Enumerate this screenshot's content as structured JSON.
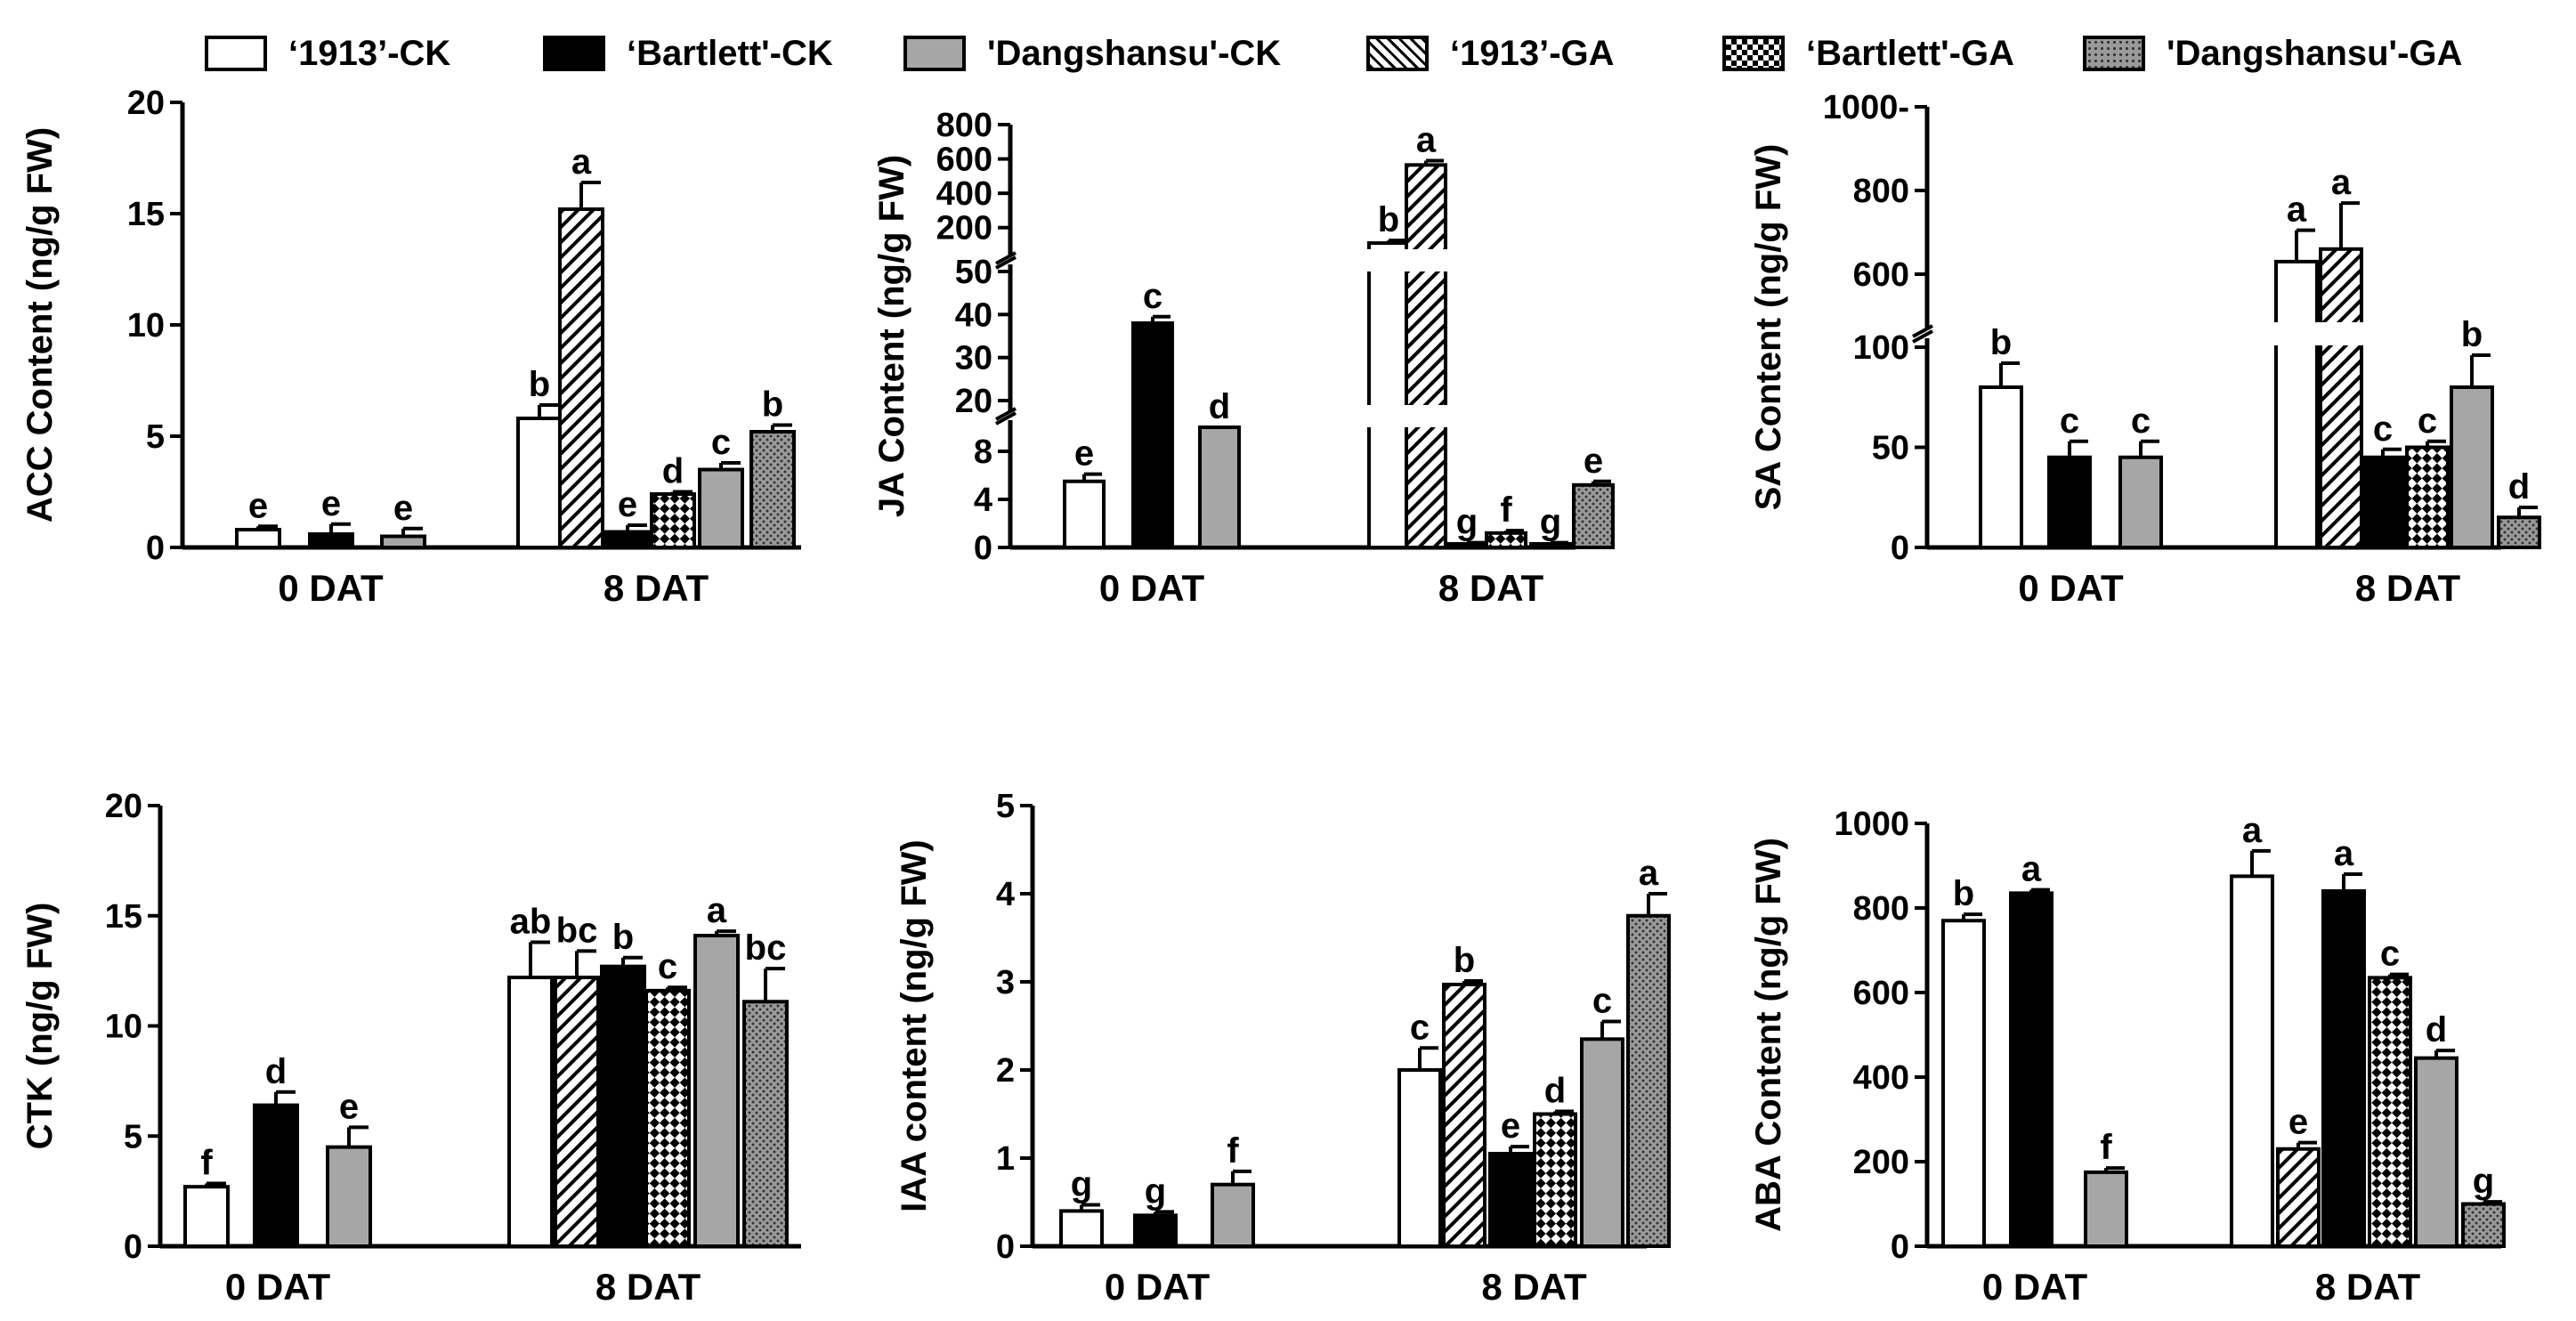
{
  "legend": [
    {
      "label": "‘1913’-CK",
      "pattern": "white"
    },
    {
      "label": "‘Bartlett'-CK",
      "pattern": "black"
    },
    {
      "label": "'Dangshansu'-CK",
      "pattern": "gray"
    },
    {
      "label": "‘1913’-GA",
      "pattern": "hatch"
    },
    {
      "label": "‘Bartlett'-GA",
      "pattern": "checker"
    },
    {
      "label": "'Dangshansu'-GA",
      "pattern": "dots"
    }
  ],
  "colors": {
    "black": "#000000",
    "gray": "#a6a6a6",
    "white": "#ffffff",
    "dotgray": "#9a9a9a"
  },
  "chart_data": [
    {
      "type": "bar",
      "ylabel": "ACC Content (ng/g FW)",
      "categories": [
        "0 DAT",
        "8 DAT"
      ],
      "ylim": [
        0,
        20
      ],
      "yticks": [
        "0",
        "5",
        "10",
        "15",
        "20"
      ],
      "series": [
        {
          "name": "‘1913’-CK",
          "values": [
            0.8,
            5.8
          ],
          "errors": [
            0.15,
            0.6
          ],
          "letters": [
            "e",
            "b"
          ]
        },
        {
          "name": "‘1913’-GA",
          "values": [
            null,
            15.2
          ],
          "errors": [
            null,
            1.2
          ],
          "letters": [
            null,
            "a"
          ]
        },
        {
          "name": "‘Bartlett'-CK",
          "values": [
            0.6,
            0.7
          ],
          "errors": [
            0.45,
            0.3
          ],
          "letters": [
            "e",
            "e"
          ]
        },
        {
          "name": "‘Bartlett'-GA",
          "values": [
            null,
            2.4
          ],
          "errors": [
            null,
            0.1
          ],
          "letters": [
            null,
            "d"
          ]
        },
        {
          "name": "'Dangshansu'-CK",
          "values": [
            0.5,
            3.5
          ],
          "errors": [
            0.35,
            0.3
          ],
          "letters": [
            "e",
            "c"
          ]
        },
        {
          "name": "'Dangshansu'-GA",
          "values": [
            null,
            5.2
          ],
          "errors": [
            null,
            0.3
          ],
          "letters": [
            null,
            "b"
          ]
        }
      ]
    },
    {
      "type": "bar",
      "ylabel": "JA Content (ng/g FW)",
      "categories": [
        "0 DAT",
        "8 DAT"
      ],
      "ylim": [
        0,
        800
      ],
      "yticks": [
        "0",
        "4",
        "8",
        "20",
        "30",
        "40",
        "50",
        "200",
        "400",
        "600",
        "800"
      ],
      "series": [
        {
          "name": "‘1913’-CK",
          "values": [
            5.5,
            110
          ],
          "errors": [
            0.6,
            15
          ],
          "letters": [
            "e",
            "b"
          ]
        },
        {
          "name": "‘1913’-GA",
          "values": [
            null,
            565
          ],
          "errors": [
            null,
            25
          ],
          "letters": [
            null,
            "a"
          ]
        },
        {
          "name": "‘Bartlett'-CK",
          "values": [
            38,
            0.3
          ],
          "errors": [
            1.5,
            0.1
          ],
          "letters": [
            "c",
            "g"
          ]
        },
        {
          "name": "‘Bartlett'-GA",
          "values": [
            null,
            1.2
          ],
          "errors": [
            null,
            0.2
          ],
          "letters": [
            null,
            "f"
          ]
        },
        {
          "name": "'Dangshansu'-CK",
          "values": [
            10,
            0.3
          ],
          "errors": [
            0.4,
            0.1
          ],
          "letters": [
            "d",
            "g"
          ]
        },
        {
          "name": "'Dangshansu'-GA",
          "values": [
            null,
            5.2
          ],
          "errors": [
            null,
            0.3
          ],
          "letters": [
            null,
            "e"
          ]
        }
      ]
    },
    {
      "type": "bar",
      "ylabel": "SA Content (ng/g FW)",
      "categories": [
        "0 DAT",
        "8 DAT"
      ],
      "ylim": [
        0,
        1000
      ],
      "yticks": [
        "0",
        "50",
        "100",
        "600",
        "800",
        "1000-"
      ],
      "series": [
        {
          "name": "‘1913’-CK",
          "values": [
            80,
            630
          ],
          "errors": [
            12,
            75
          ],
          "letters": [
            "b",
            "a"
          ]
        },
        {
          "name": "‘1913’-GA",
          "values": [
            null,
            660
          ],
          "errors": [
            null,
            110
          ],
          "letters": [
            null,
            "a"
          ]
        },
        {
          "name": "‘Bartlett'-CK",
          "values": [
            45,
            45
          ],
          "errors": [
            8,
            4
          ],
          "letters": [
            "c",
            "c"
          ]
        },
        {
          "name": "‘Bartlett'-GA",
          "values": [
            null,
            50
          ],
          "errors": [
            null,
            3
          ],
          "letters": [
            null,
            "c"
          ]
        },
        {
          "name": "'Dangshansu'-CK",
          "values": [
            45,
            80
          ],
          "errors": [
            8,
            16
          ],
          "letters": [
            "c",
            "b"
          ]
        },
        {
          "name": "'Dangshansu'-GA",
          "values": [
            null,
            15
          ],
          "errors": [
            null,
            5
          ],
          "letters": [
            null,
            "d"
          ]
        }
      ]
    },
    {
      "type": "bar",
      "ylabel": "CTK (ng/g FW)",
      "categories": [
        "0 DAT",
        "8 DAT"
      ],
      "ylim": [
        0,
        20
      ],
      "yticks": [
        "0",
        "5",
        "10",
        "15",
        "20"
      ],
      "series": [
        {
          "name": "‘1913’-CK",
          "values": [
            2.7,
            12.2
          ],
          "errors": [
            0.15,
            1.6
          ],
          "letters": [
            "f",
            "ab"
          ]
        },
        {
          "name": "‘1913’-GA",
          "values": [
            null,
            12.2
          ],
          "errors": [
            null,
            1.2
          ],
          "letters": [
            null,
            "bc"
          ]
        },
        {
          "name": "‘Bartlett'-CK",
          "values": [
            6.4,
            12.7
          ],
          "errors": [
            0.6,
            0.4
          ],
          "letters": [
            "d",
            "b"
          ]
        },
        {
          "name": "‘Bartlett'-GA",
          "values": [
            null,
            11.6
          ],
          "errors": [
            null,
            0.15
          ],
          "letters": [
            null,
            "c"
          ]
        },
        {
          "name": "'Dangshansu'-CK",
          "values": [
            4.5,
            14.1
          ],
          "errors": [
            0.9,
            0.2
          ],
          "letters": [
            "e",
            "a"
          ]
        },
        {
          "name": "'Dangshansu'-GA",
          "values": [
            null,
            11.1
          ],
          "errors": [
            null,
            1.5
          ],
          "letters": [
            null,
            "bc"
          ]
        }
      ]
    },
    {
      "type": "bar",
      "ylabel": "IAA content (ng/g FW)",
      "categories": [
        "0 DAT",
        "8 DAT"
      ],
      "ylim": [
        0,
        5
      ],
      "yticks": [
        "0",
        "1",
        "2",
        "3",
        "4",
        "5"
      ],
      "series": [
        {
          "name": "‘1913’-CK",
          "values": [
            0.4,
            2.0
          ],
          "errors": [
            0.07,
            0.25
          ],
          "letters": [
            "g",
            "c"
          ]
        },
        {
          "name": "‘1913’-GA",
          "values": [
            null,
            2.97
          ],
          "errors": [
            null,
            0.04
          ],
          "letters": [
            null,
            "b"
          ]
        },
        {
          "name": "‘Bartlett'-CK",
          "values": [
            0.35,
            1.05
          ],
          "errors": [
            0.04,
            0.08
          ],
          "letters": [
            "g",
            "e"
          ]
        },
        {
          "name": "‘Bartlett'-GA",
          "values": [
            null,
            1.5
          ],
          "errors": [
            null,
            0.03
          ],
          "letters": [
            null,
            "d"
          ]
        },
        {
          "name": "'Dangshansu'-CK",
          "values": [
            0.7,
            2.35
          ],
          "errors": [
            0.15,
            0.2
          ],
          "letters": [
            "f",
            "c"
          ]
        },
        {
          "name": "'Dangshansu'-GA",
          "values": [
            null,
            3.75
          ],
          "errors": [
            null,
            0.25
          ],
          "letters": [
            null,
            "a"
          ]
        }
      ]
    },
    {
      "type": "bar",
      "ylabel": "ABA Content (ng/g FW)",
      "categories": [
        "0 DAT",
        "8 DAT"
      ],
      "ylim": [
        0,
        1000
      ],
      "yticks": [
        "0",
        "200",
        "400",
        "600",
        "800",
        "1000"
      ],
      "series": [
        {
          "name": "‘1913’-CK",
          "values": [
            770,
            875
          ],
          "errors": [
            15,
            60
          ],
          "letters": [
            "b",
            "a"
          ]
        },
        {
          "name": "‘1913’-GA",
          "values": [
            null,
            230
          ],
          "errors": [
            null,
            15
          ],
          "letters": [
            null,
            "e"
          ]
        },
        {
          "name": "‘Bartlett'-CK",
          "values": [
            835,
            840
          ],
          "errors": [
            8,
            40
          ],
          "letters": [
            "a",
            "a"
          ]
        },
        {
          "name": "‘Bartlett'-GA",
          "values": [
            null,
            635
          ],
          "errors": [
            null,
            8
          ],
          "letters": [
            null,
            "c"
          ]
        },
        {
          "name": "'Dangshansu'-CK",
          "values": [
            175,
            445
          ],
          "errors": [
            10,
            18
          ],
          "letters": [
            "f",
            "d"
          ]
        },
        {
          "name": "'Dangshansu'-GA",
          "values": [
            null,
            100
          ],
          "errors": [
            null,
            5
          ],
          "letters": [
            null,
            "g"
          ]
        }
      ]
    }
  ]
}
